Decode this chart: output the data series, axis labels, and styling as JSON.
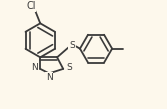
{
  "background_color": "#fdf8ec",
  "line_color": "#3a3a3a",
  "line_width": 1.3,
  "font_size": 6.5,
  "figsize": [
    1.67,
    1.09
  ],
  "dpi": 100,
  "xlim": [
    -1.0,
    3.8
  ],
  "ylim": [
    -1.6,
    1.8
  ]
}
